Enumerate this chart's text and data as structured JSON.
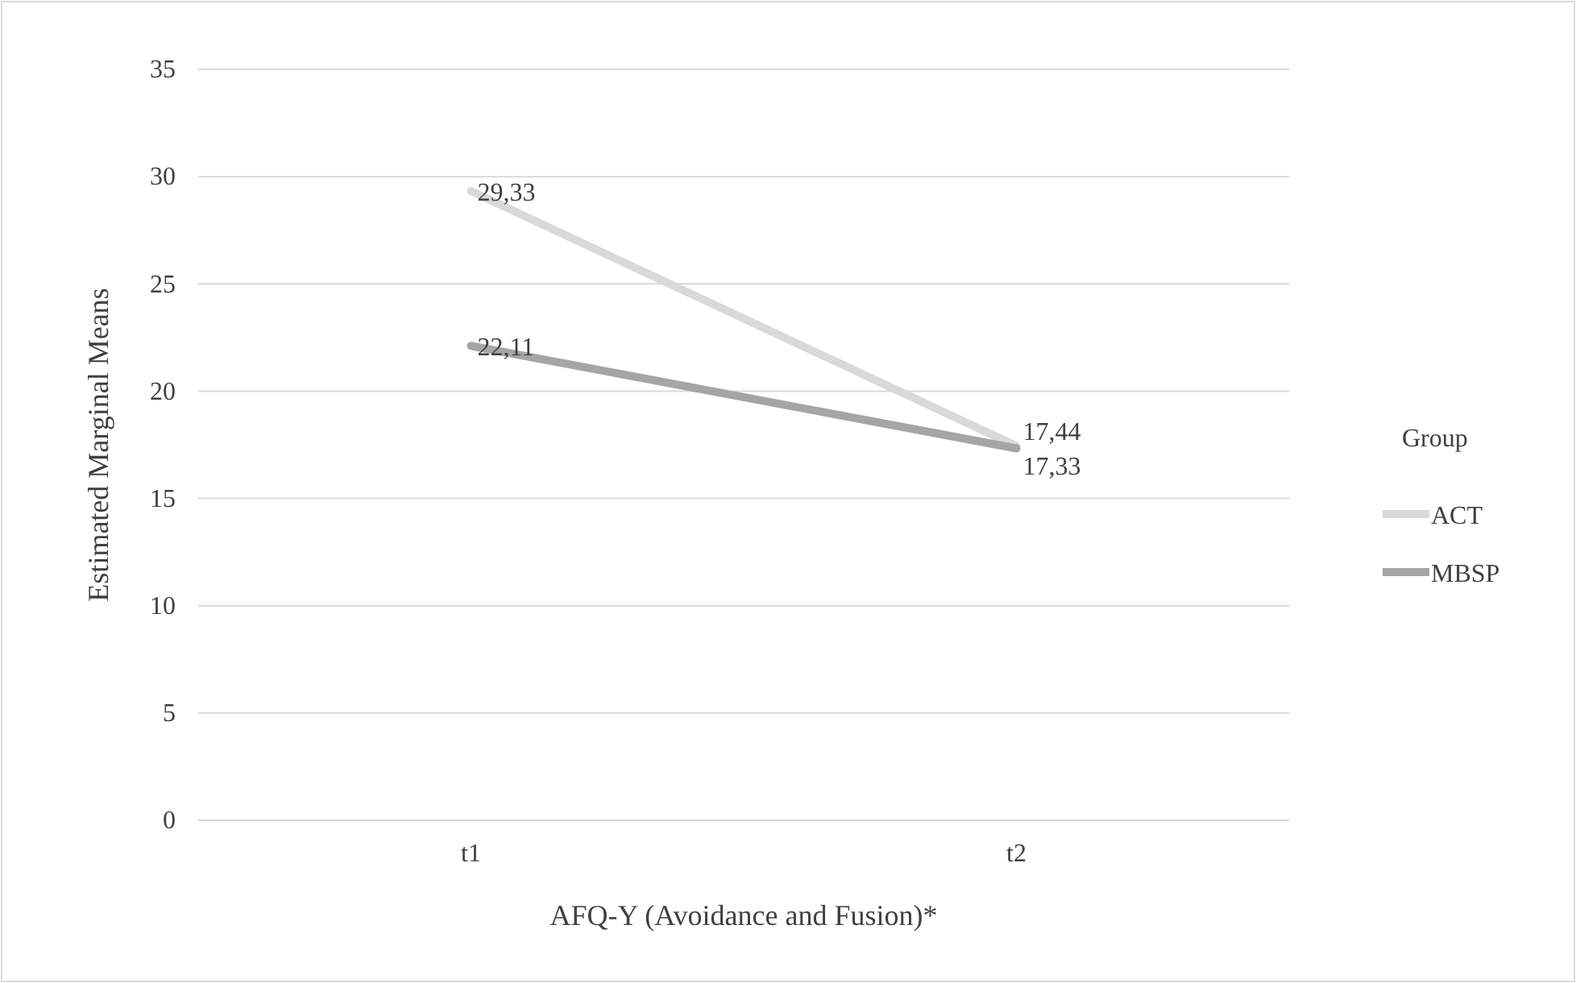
{
  "chart_data": {
    "type": "line",
    "xlabel": "AFQ-Y (Avoidance and Fusion)*",
    "ylabel": "Estimated Marginal Means",
    "legend_title": "Group",
    "categories": [
      "t1",
      "t2"
    ],
    "series": [
      {
        "name": "ACT",
        "color": "#d9d9d9",
        "values": [
          29.33,
          17.44
        ],
        "value_labels": [
          "29,33",
          "17,44"
        ]
      },
      {
        "name": "MBSP",
        "color": "#a5a5a5",
        "values": [
          22.11,
          17.33
        ],
        "value_labels": [
          "22,11",
          "17,33"
        ]
      }
    ],
    "ylim": [
      0,
      35
    ],
    "yticks": [
      0,
      5,
      10,
      15,
      20,
      25,
      30,
      35
    ],
    "grid": "y",
    "legend": "right",
    "marker": "none",
    "line_style": "solid"
  }
}
